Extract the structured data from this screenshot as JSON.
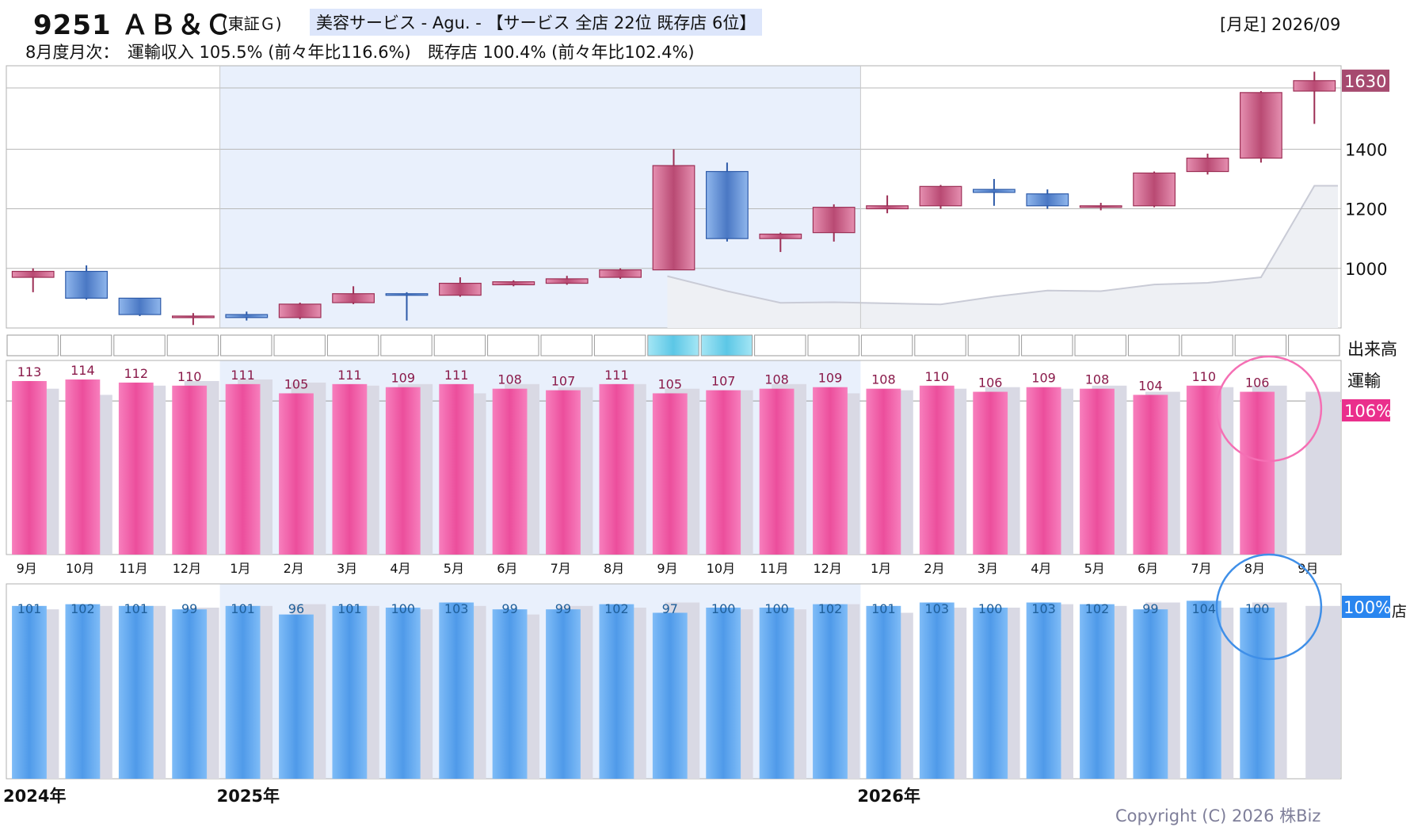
{
  "header": {
    "code_name": "9251 ＡＢ＆Ｃ",
    "market": "(東証Ｇ)",
    "sector": "美容サービス - Agu. - 【サービス 全店 22位 既存店 6位】",
    "period": "[月足] 2026/09",
    "summary": "8月度月次：　運輸収入 105.5% (前々年比116.6%)　既存店 100.4% (前々年比102.4%)"
  },
  "labels": {
    "volume": "出来高",
    "transport": "運輸",
    "transport_current": "106%",
    "existing_current": "100%",
    "existing_partial": "店",
    "price_current": "1630"
  },
  "colors": {
    "up": "#c74f79",
    "down": "#4f7fcb",
    "transport_bar": "#f261a8",
    "existing_bar": "#5ea7f2",
    "prev_bar": "#d9d9e4",
    "highlight": "#e9f0fc"
  },
  "chart_data": {
    "type": "candlestick+bar",
    "months": [
      "9月",
      "10月",
      "11月",
      "12月",
      "1月",
      "2月",
      "3月",
      "4月",
      "5月",
      "6月",
      "7月",
      "8月",
      "9月",
      "10月",
      "11月",
      "12月",
      "1月",
      "2月",
      "3月",
      "4月",
      "5月",
      "6月",
      "7月",
      "8月",
      "9月"
    ],
    "year_labels": [
      {
        "label": "2024年",
        "index": 0
      },
      {
        "label": "2025年",
        "index": 4
      },
      {
        "label": "2026年",
        "index": 16
      }
    ],
    "price": {
      "y_ticks": [
        1000,
        1200,
        1400
      ],
      "ylim": [
        800,
        1680
      ],
      "candles": [
        {
          "o": 970,
          "c": 990,
          "h": 1000,
          "l": 920
        },
        {
          "o": 990,
          "c": 900,
          "h": 1010,
          "l": 895
        },
        {
          "o": 900,
          "c": 845,
          "h": 900,
          "l": 840
        },
        {
          "o": 840,
          "c": 840,
          "h": 850,
          "l": 810
        },
        {
          "o": 845,
          "c": 835,
          "h": 855,
          "l": 825
        },
        {
          "o": 835,
          "c": 880,
          "h": 885,
          "l": 830
        },
        {
          "o": 885,
          "c": 915,
          "h": 940,
          "l": 880
        },
        {
          "o": 915,
          "c": 910,
          "h": 920,
          "l": 825
        },
        {
          "o": 910,
          "c": 950,
          "h": 970,
          "l": 905
        },
        {
          "o": 945,
          "c": 955,
          "h": 960,
          "l": 940
        },
        {
          "o": 950,
          "c": 965,
          "h": 975,
          "l": 945
        },
        {
          "o": 970,
          "c": 995,
          "h": 1000,
          "l": 965
        },
        {
          "o": 995,
          "c": 1345,
          "h": 1400,
          "l": 995
        },
        {
          "o": 1325,
          "c": 1100,
          "h": 1355,
          "l": 1090
        },
        {
          "o": 1100,
          "c": 1115,
          "h": 1120,
          "l": 1055
        },
        {
          "o": 1120,
          "c": 1205,
          "h": 1215,
          "l": 1090
        },
        {
          "o": 1200,
          "c": 1210,
          "h": 1245,
          "l": 1185
        },
        {
          "o": 1210,
          "c": 1275,
          "h": 1280,
          "l": 1200
        },
        {
          "o": 1265,
          "c": 1255,
          "h": 1300,
          "l": 1210
        },
        {
          "o": 1250,
          "c": 1210,
          "h": 1265,
          "l": 1200
        },
        {
          "o": 1205,
          "c": 1210,
          "h": 1220,
          "l": 1195
        },
        {
          "o": 1210,
          "c": 1320,
          "h": 1325,
          "l": 1205
        },
        {
          "o": 1325,
          "c": 1370,
          "h": 1385,
          "l": 1315
        },
        {
          "o": 1370,
          "c": 1590,
          "h": 1595,
          "l": 1355
        },
        {
          "o": 1595,
          "c": 1630,
          "h": 1660,
          "l": 1485
        }
      ],
      "volume_area": [
        null,
        null,
        null,
        null,
        null,
        null,
        null,
        null,
        null,
        null,
        null,
        null,
        0.82,
        0.55,
        0.34,
        0.35,
        0.33,
        0.31,
        0.45,
        0.56,
        0.55,
        0.67,
        0.7,
        0.8,
        2.45
      ]
    },
    "volume_highlight": [
      false,
      false,
      false,
      false,
      false,
      false,
      false,
      false,
      false,
      false,
      false,
      false,
      true,
      true,
      false,
      false,
      false,
      false,
      false,
      false,
      false,
      false,
      false,
      false,
      false
    ],
    "transport": {
      "series": [
        {
          "name": "運輸",
          "values": [
            113,
            114,
            112,
            110,
            111,
            105,
            111,
            109,
            111,
            108,
            107,
            111,
            105,
            107,
            108,
            109,
            108,
            110,
            106,
            109,
            108,
            104,
            110,
            106,
            null
          ]
        }
      ],
      "prev_year": [
        108,
        104,
        110,
        113,
        114,
        112,
        110,
        111,
        105,
        111,
        109,
        111,
        108,
        107,
        111,
        105,
        107,
        108,
        109,
        108,
        110,
        106,
        109,
        110,
        106
      ]
    },
    "existing": {
      "series": [
        {
          "name": "既存店",
          "values": [
            101,
            102,
            101,
            99,
            101,
            96,
            101,
            100,
            103,
            99,
            99,
            102,
            97,
            100,
            100,
            102,
            101,
            103,
            100,
            103,
            102,
            99,
            104,
            100,
            null
          ]
        }
      ],
      "prev_year": [
        99,
        101,
        101,
        100,
        101,
        102,
        101,
        99,
        101,
        96,
        101,
        100,
        103,
        99,
        99,
        102,
        97,
        100,
        100,
        102,
        101,
        103,
        100,
        103,
        101
      ]
    }
  },
  "copyright": "Copyright (C) 2026 株Biz"
}
